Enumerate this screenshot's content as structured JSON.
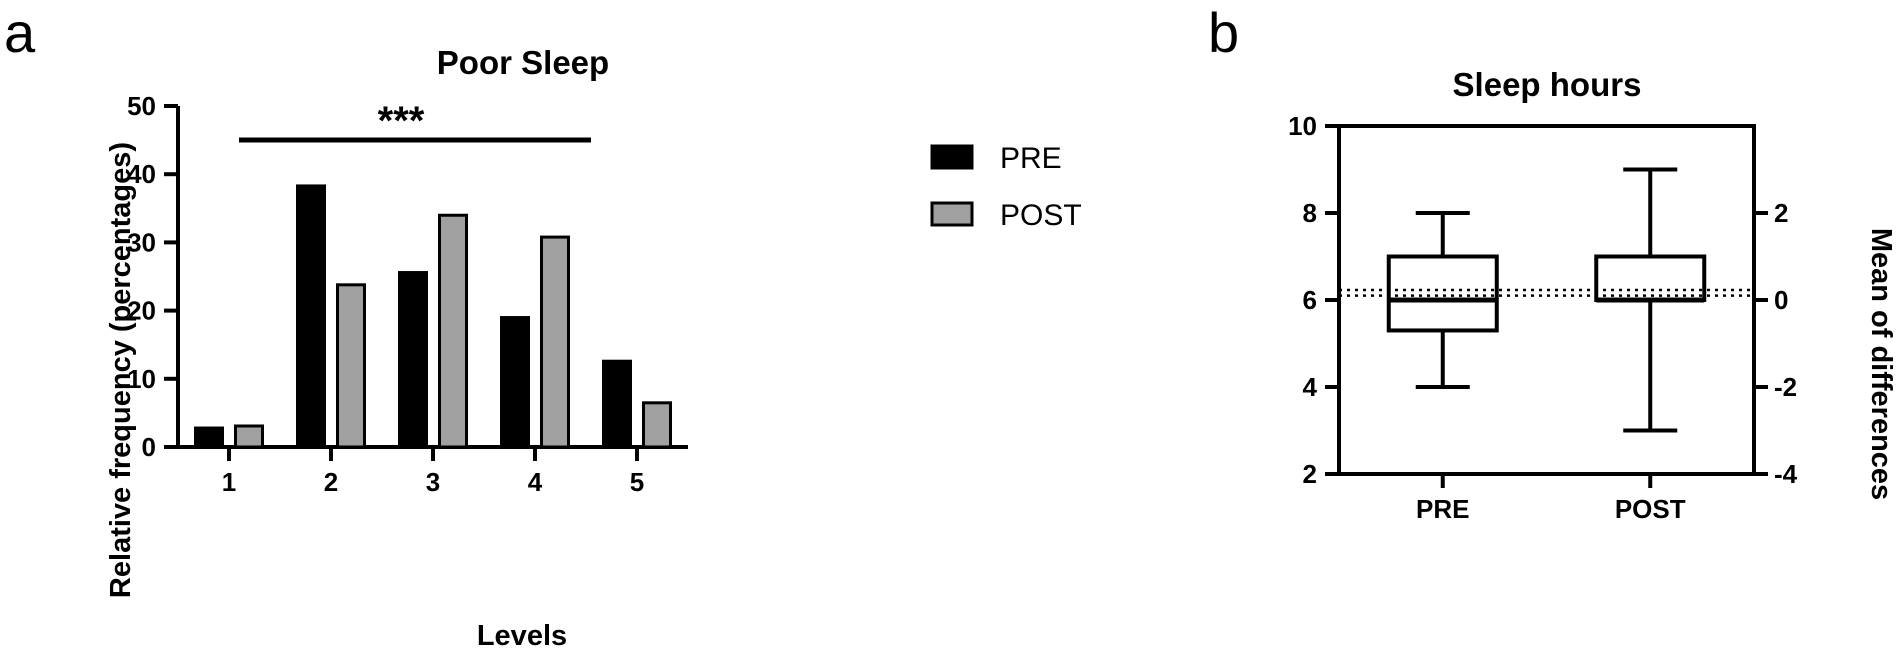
{
  "panels": {
    "a": {
      "letter": "a"
    },
    "b": {
      "letter": "b"
    }
  },
  "colors": {
    "pre": "#000000",
    "post": "#a0a0a0",
    "axis": "#000000"
  },
  "chart_data": [
    {
      "panel": "a",
      "type": "bar",
      "title": "Poor Sleep",
      "xlabel": "Levels",
      "ylabel": "Relative frequency (percentages)",
      "categories": [
        "1",
        "2",
        "3",
        "4",
        "5"
      ],
      "series": [
        {
          "name": "PRE",
          "values": [
            3,
            38.5,
            25.8,
            19.2,
            12.8
          ]
        },
        {
          "name": "POST",
          "values": [
            3.3,
            24,
            34.2,
            31,
            6.7
          ]
        }
      ],
      "ylim": [
        0,
        50
      ],
      "yticks": [
        0,
        10,
        20,
        30,
        40,
        50
      ],
      "legend": {
        "placement": "right",
        "entries": [
          "PRE",
          "POST"
        ]
      },
      "annotation": {
        "text": "***",
        "from_category": "1",
        "to_category": "4"
      },
      "grid": false
    },
    {
      "panel": "b",
      "type": "box",
      "title": "Sleep hours",
      "ylabel": "",
      "y2label": "Mean of differences",
      "categories": [
        "PRE",
        "POST"
      ],
      "boxes": [
        {
          "name": "PRE",
          "min": 4,
          "q1": 5.3,
          "median": 6,
          "q3": 7,
          "max": 8
        },
        {
          "name": "POST",
          "min": 3,
          "q1": 6,
          "median": 6,
          "q3": 7,
          "max": 9
        }
      ],
      "ylim": [
        2,
        10
      ],
      "yticks": [
        2,
        4,
        6,
        8,
        10
      ],
      "y2lim": [
        -4,
        4
      ],
      "y2ticks": [
        -4,
        -2,
        0,
        2
      ],
      "reference_lines": [
        6.1,
        6.23
      ],
      "grid": false
    }
  ]
}
